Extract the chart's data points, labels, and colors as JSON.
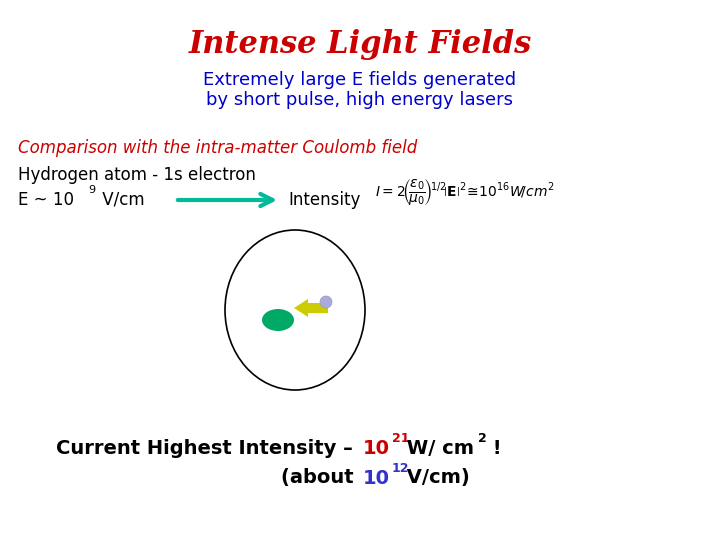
{
  "title": "Intense Light Fields",
  "subtitle_line1": "Extremely large E fields generated",
  "subtitle_line2": "by short pulse, high energy lasers",
  "comparison_text": "Comparison with the intra-matter Coulomb field",
  "hydrogen_line1": "Hydrogen atom - 1s electron",
  "title_color": "#cc0000",
  "subtitle_color": "#0000cc",
  "comparison_color": "#cc0000",
  "hydrogen_color": "#000000",
  "arrow_color": "#00bb99",
  "intensity_color": "#000000",
  "bottom_black": "#000000",
  "bottom_red": "#cc0000",
  "bottom_blue": "#3333cc",
  "bg_color": "#ffffff",
  "nucleus_color": "#00aa66",
  "electron_color": "#aaaadd",
  "yellow_arrow_color": "#cccc00"
}
